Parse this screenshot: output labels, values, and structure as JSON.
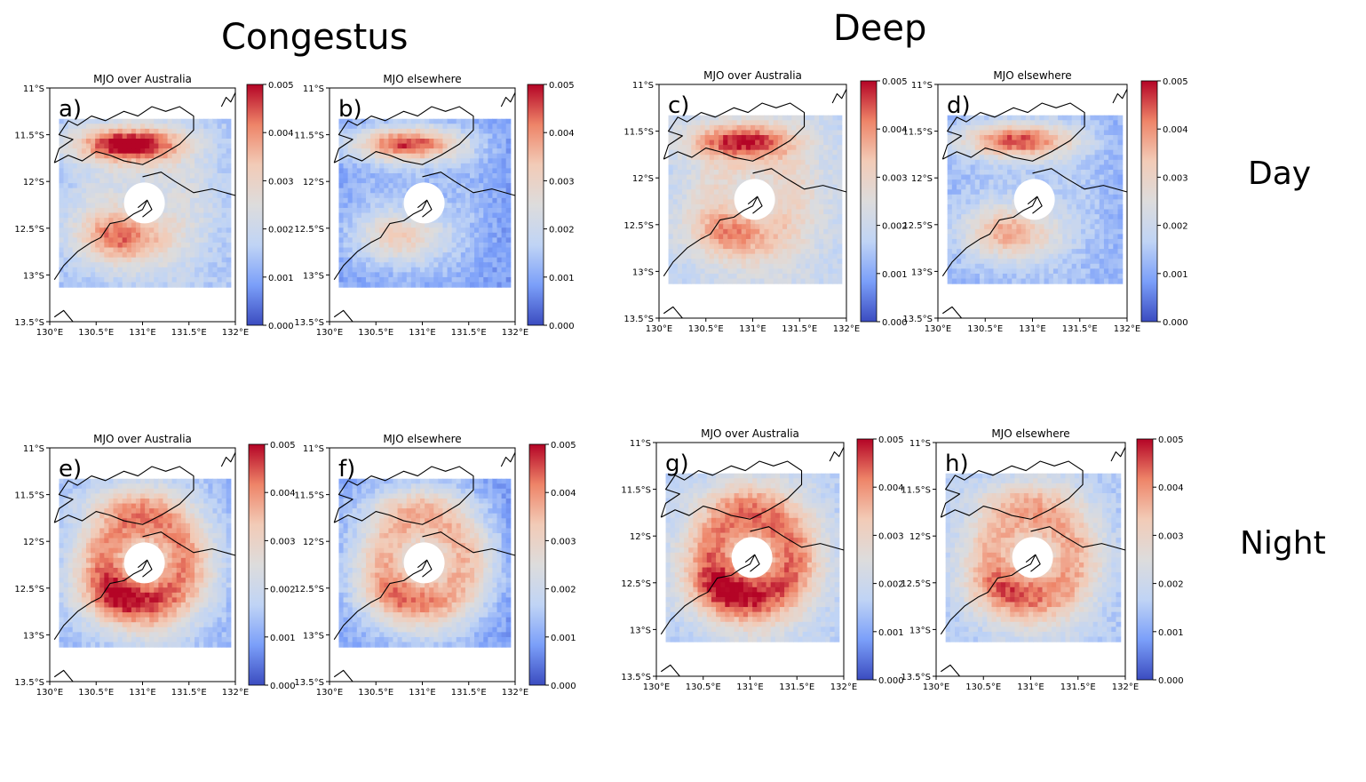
{
  "figure": {
    "column_titles": [
      "Congestus",
      "Deep"
    ],
    "row_titles": [
      "Day",
      "Night"
    ]
  },
  "axes": {
    "lat_ticks": [
      "11°S",
      "11.5°S",
      "12°S",
      "12.5°S",
      "13°S",
      "13.5°S"
    ],
    "lon_ticks": [
      "130°E",
      "130.5°E",
      "131°E",
      "131.5°E",
      "132°E"
    ],
    "colorbar_ticks": [
      "0.000",
      "0.001",
      "0.002",
      "0.003",
      "0.004",
      "0.005"
    ],
    "colormap": [
      "#3b4cc0",
      "#7b9ff9",
      "#c0d4f5",
      "#dddcdc",
      "#f2cbb7",
      "#ee8468",
      "#b40426"
    ],
    "vmin": 0.0,
    "vmax": 0.005
  },
  "panels": [
    {
      "label": "a)",
      "title": "MJO over Australia",
      "cloud_type": "Congestus",
      "time_of_day": "Day"
    },
    {
      "label": "b)",
      "title": "MJO elsewhere",
      "cloud_type": "Congestus",
      "time_of_day": "Day"
    },
    {
      "label": "c)",
      "title": "MJO over Australia",
      "cloud_type": "Deep",
      "time_of_day": "Day"
    },
    {
      "label": "d)",
      "title": "MJO elsewhere",
      "cloud_type": "Deep",
      "time_of_day": "Day"
    },
    {
      "label": "e)",
      "title": "MJO over Australia",
      "cloud_type": "Congestus",
      "time_of_day": "Night"
    },
    {
      "label": "f)",
      "title": "MJO elsewhere",
      "cloud_type": "Congestus",
      "time_of_day": "Night"
    },
    {
      "label": "g)",
      "title": "MJO over Australia",
      "cloud_type": "Deep",
      "time_of_day": "Night"
    },
    {
      "label": "h)",
      "title": "MJO elsewhere",
      "cloud_type": "Deep",
      "time_of_day": "Night"
    }
  ]
}
